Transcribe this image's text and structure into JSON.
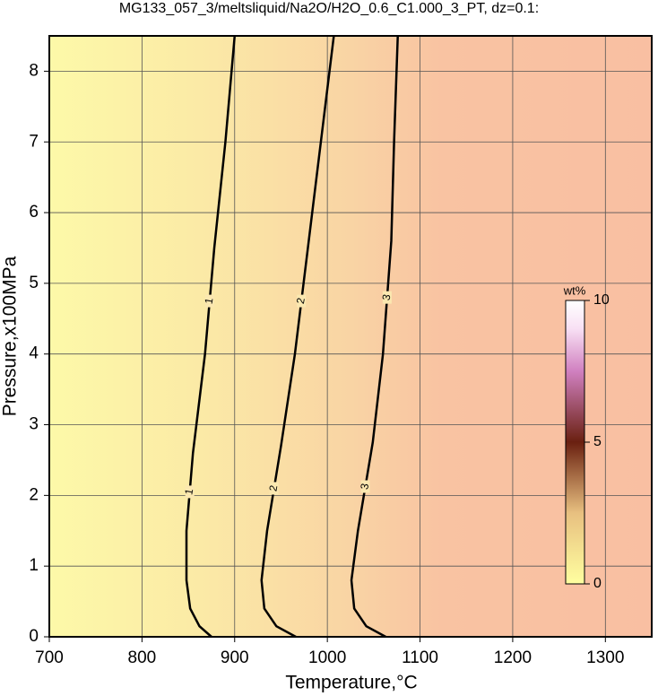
{
  "chart_data": {
    "type": "contour",
    "title": "MG133_057_3/meltsliquid/Na2O/H2O_0.6_C1.000_3_PT, dz=0.1:",
    "x_label": "Temperature,°C",
    "y_label": "Pressure,x100MPa",
    "xlim": [
      700,
      1350
    ],
    "xticks": [
      700,
      800,
      900,
      1000,
      1100,
      1200,
      1300
    ],
    "ylim": [
      0,
      8.5
    ],
    "yticks": [
      0,
      1,
      2,
      3,
      4,
      5,
      6,
      7,
      8
    ],
    "grid": true,
    "series": [
      {
        "name": "1",
        "color": "#000000",
        "x": [
          875,
          862,
          852,
          848,
          848,
          855,
          868,
          878,
          890,
          900
        ],
        "y": [
          0,
          0.15,
          0.4,
          0.8,
          1.5,
          2.6,
          4,
          5.5,
          7,
          8.5
        ]
      },
      {
        "name": "2",
        "color": "#000000",
        "x": [
          966,
          945,
          932,
          929,
          935,
          950,
          965,
          979,
          993,
          1007
        ],
        "y": [
          0,
          0.15,
          0.4,
          0.8,
          1.5,
          2.7,
          4,
          5.5,
          7,
          8.5
        ]
      },
      {
        "name": "3",
        "color": "#000000",
        "x": [
          1063,
          1042,
          1029,
          1026,
          1033,
          1049,
          1060,
          1069,
          1072,
          1076
        ],
        "y": [
          0,
          0.15,
          0.4,
          0.8,
          1.5,
          2.75,
          4,
          5.6,
          7,
          8.5
        ]
      }
    ],
    "colorbar": {
      "label": "wt%",
      "lim": [
        0,
        10
      ],
      "ticks": [
        0,
        5,
        10
      ]
    }
  }
}
